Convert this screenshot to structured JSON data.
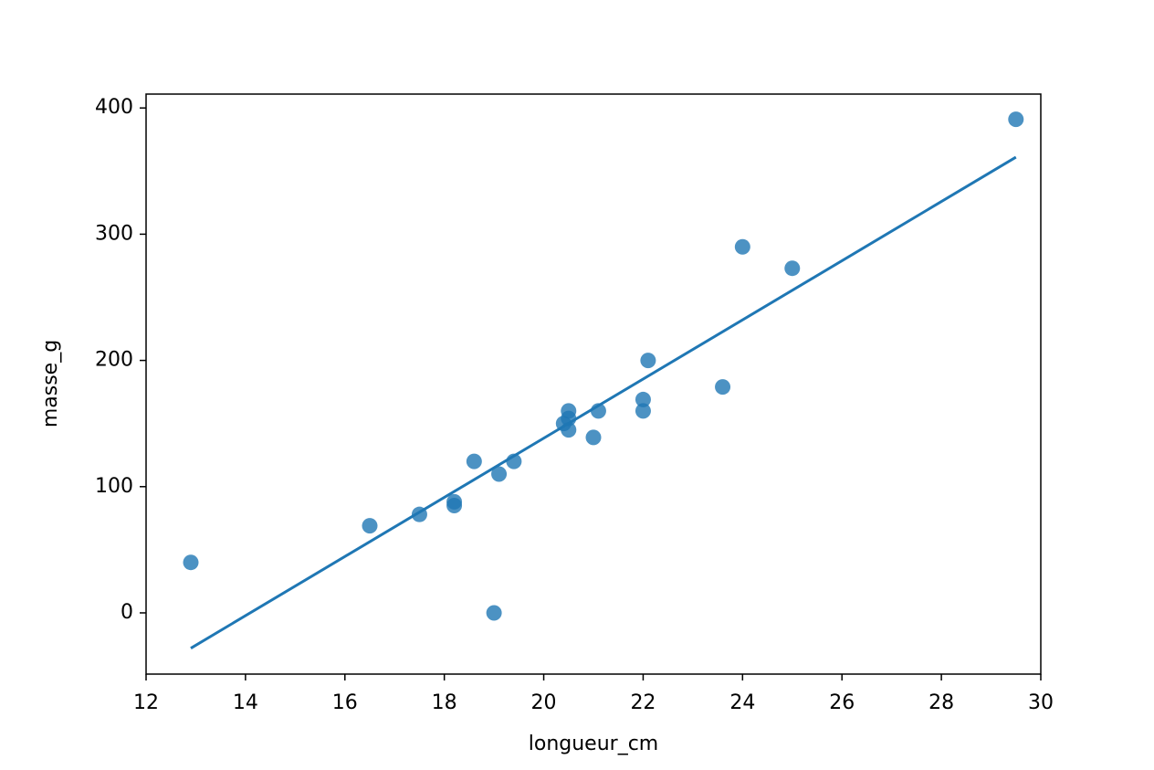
{
  "chart_data": {
    "type": "scatter",
    "xlabel": "longueur_cm",
    "ylabel": "masse_g",
    "x": [
      12.9,
      16.5,
      17.5,
      18.2,
      18.2,
      18.6,
      19.0,
      19.1,
      19.4,
      20.4,
      20.5,
      20.5,
      20.5,
      21.0,
      21.1,
      22.0,
      22.0,
      22.1,
      23.6,
      24.0,
      25.0,
      29.5
    ],
    "values": [
      40,
      69,
      78,
      88,
      85,
      120,
      0,
      110,
      120,
      150,
      160,
      145,
      154,
      139,
      160,
      169,
      160,
      200,
      179,
      290,
      273,
      391
    ],
    "color": "#1f77b4",
    "fit_line": {
      "x": [
        12.9,
        29.5
      ],
      "values": [
        -28,
        361
      ],
      "color": "#1f77b4"
    },
    "xlim": [
      12,
      30
    ],
    "xticks": [
      12,
      14,
      16,
      18,
      20,
      22,
      24,
      26,
      28,
      30
    ],
    "ylim": [
      -48.5,
      411
    ],
    "yticks": [
      0,
      100,
      200,
      300,
      400
    ],
    "grid": false
  }
}
